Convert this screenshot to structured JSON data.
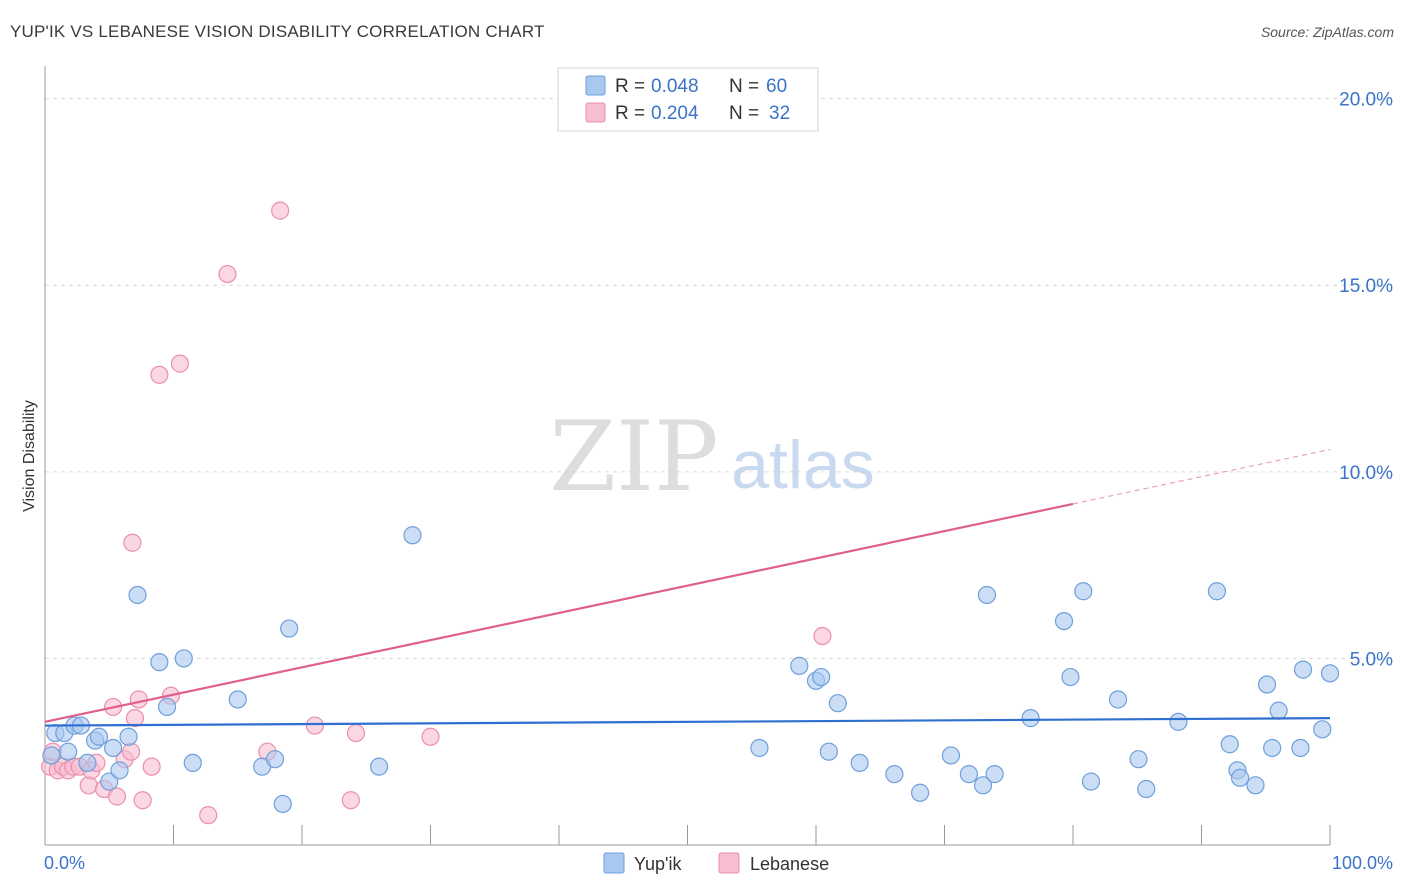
{
  "header": {
    "title": "YUP'IK VS LEBANESE VISION DISABILITY CORRELATION CHART",
    "source": "Source: ZipAtlas.com"
  },
  "watermark": {
    "zip": "ZIP",
    "atlas": "atlas"
  },
  "colors": {
    "blue_fill": "#a9c8f0",
    "blue_stroke": "#6f9fdb",
    "blue_line": "#2f6fcf",
    "pink_fill": "#f7bdd0",
    "pink_stroke": "#ea8fae",
    "pink_line": "#e0608c",
    "axis_text": "#3b73c8",
    "grid": "#d9d9d9"
  },
  "legend": {
    "rows": [
      {
        "r_label": "R = ",
        "r_value": "0.048",
        "n_label": "N = ",
        "n_value": "60",
        "series": "yupik"
      },
      {
        "r_label": "R = ",
        "r_value": "0.204",
        "n_label": "N = ",
        "n_value": "32",
        "series": "lebanese"
      }
    ]
  },
  "chart_data": {
    "type": "scatter",
    "title": "YUP'IK VS LEBANESE VISION DISABILITY CORRELATION CHART",
    "xlabel": "",
    "ylabel": "Vision Disability",
    "xlim": [
      0,
      100
    ],
    "ylim": [
      0,
      20.5
    ],
    "x_tick_labels": [
      "0.0%",
      "100.0%"
    ],
    "y_ticks": [
      5,
      10,
      15,
      20
    ],
    "y_tick_labels": [
      "5.0%",
      "10.0%",
      "15.0%",
      "20.0%"
    ],
    "grid": true,
    "legend_position": "bottom-center",
    "series": [
      {
        "name": "Yup'ik",
        "key": "yupik",
        "trend": {
          "x0": 0,
          "y0": 3.2,
          "x1": 100,
          "y1": 3.4,
          "dashed_from": null
        },
        "points": [
          [
            0.5,
            2.4
          ],
          [
            0.8,
            3.0
          ],
          [
            1.5,
            3.0
          ],
          [
            1.8,
            2.5
          ],
          [
            2.3,
            3.2
          ],
          [
            2.8,
            3.2
          ],
          [
            3.3,
            2.2
          ],
          [
            3.9,
            2.8
          ],
          [
            4.2,
            2.9
          ],
          [
            5.0,
            1.7
          ],
          [
            5.3,
            2.6
          ],
          [
            5.8,
            2.0
          ],
          [
            6.5,
            2.9
          ],
          [
            7.2,
            6.7
          ],
          [
            8.9,
            4.9
          ],
          [
            9.5,
            3.7
          ],
          [
            10.8,
            5.0
          ],
          [
            11.5,
            2.2
          ],
          [
            15.0,
            3.9
          ],
          [
            16.9,
            2.1
          ],
          [
            17.9,
            2.3
          ],
          [
            18.5,
            1.1
          ],
          [
            19.0,
            5.8
          ],
          [
            26.0,
            2.1
          ],
          [
            28.6,
            8.3
          ],
          [
            55.6,
            2.6
          ],
          [
            58.7,
            4.8
          ],
          [
            60.0,
            4.4
          ],
          [
            60.4,
            4.5
          ],
          [
            61.0,
            2.5
          ],
          [
            61.7,
            3.8
          ],
          [
            63.4,
            2.2
          ],
          [
            66.1,
            1.9
          ],
          [
            68.1,
            1.4
          ],
          [
            70.5,
            2.4
          ],
          [
            71.9,
            1.9
          ],
          [
            73.0,
            1.6
          ],
          [
            73.3,
            6.7
          ],
          [
            73.9,
            1.9
          ],
          [
            76.7,
            3.4
          ],
          [
            79.3,
            6.0
          ],
          [
            79.8,
            4.5
          ],
          [
            80.8,
            6.8
          ],
          [
            81.4,
            1.7
          ],
          [
            83.5,
            3.9
          ],
          [
            85.1,
            2.3
          ],
          [
            85.7,
            1.5
          ],
          [
            88.2,
            3.3
          ],
          [
            91.2,
            6.8
          ],
          [
            92.2,
            2.7
          ],
          [
            92.8,
            2.0
          ],
          [
            93.0,
            1.8
          ],
          [
            94.2,
            1.6
          ],
          [
            95.1,
            4.3
          ],
          [
            95.5,
            2.6
          ],
          [
            96.0,
            3.6
          ],
          [
            97.7,
            2.6
          ],
          [
            97.9,
            4.7
          ],
          [
            99.4,
            3.1
          ],
          [
            100.0,
            4.6
          ]
        ]
      },
      {
        "name": "Lebanese",
        "key": "lebanese",
        "trend": {
          "x0": 0,
          "y0": 3.3,
          "x1": 100,
          "y1": 10.6,
          "dashed_from": 80
        },
        "points": [
          [
            0.4,
            2.1
          ],
          [
            0.6,
            2.5
          ],
          [
            1.0,
            2.0
          ],
          [
            1.4,
            2.1
          ],
          [
            1.8,
            2.0
          ],
          [
            2.2,
            2.1
          ],
          [
            2.7,
            2.1
          ],
          [
            3.4,
            1.6
          ],
          [
            3.6,
            2.0
          ],
          [
            4.0,
            2.2
          ],
          [
            4.6,
            1.5
          ],
          [
            5.3,
            3.7
          ],
          [
            5.6,
            1.3
          ],
          [
            6.2,
            2.3
          ],
          [
            6.7,
            2.5
          ],
          [
            6.8,
            8.1
          ],
          [
            7.0,
            3.4
          ],
          [
            7.3,
            3.9
          ],
          [
            7.6,
            1.2
          ],
          [
            8.3,
            2.1
          ],
          [
            8.9,
            12.6
          ],
          [
            9.8,
            4.0
          ],
          [
            10.5,
            12.9
          ],
          [
            12.7,
            0.8
          ],
          [
            14.2,
            15.3
          ],
          [
            17.3,
            2.5
          ],
          [
            18.3,
            17.0
          ],
          [
            21.0,
            3.2
          ],
          [
            23.8,
            1.2
          ],
          [
            24.2,
            3.0
          ],
          [
            30.0,
            2.9
          ],
          [
            60.5,
            5.6
          ]
        ]
      }
    ]
  }
}
